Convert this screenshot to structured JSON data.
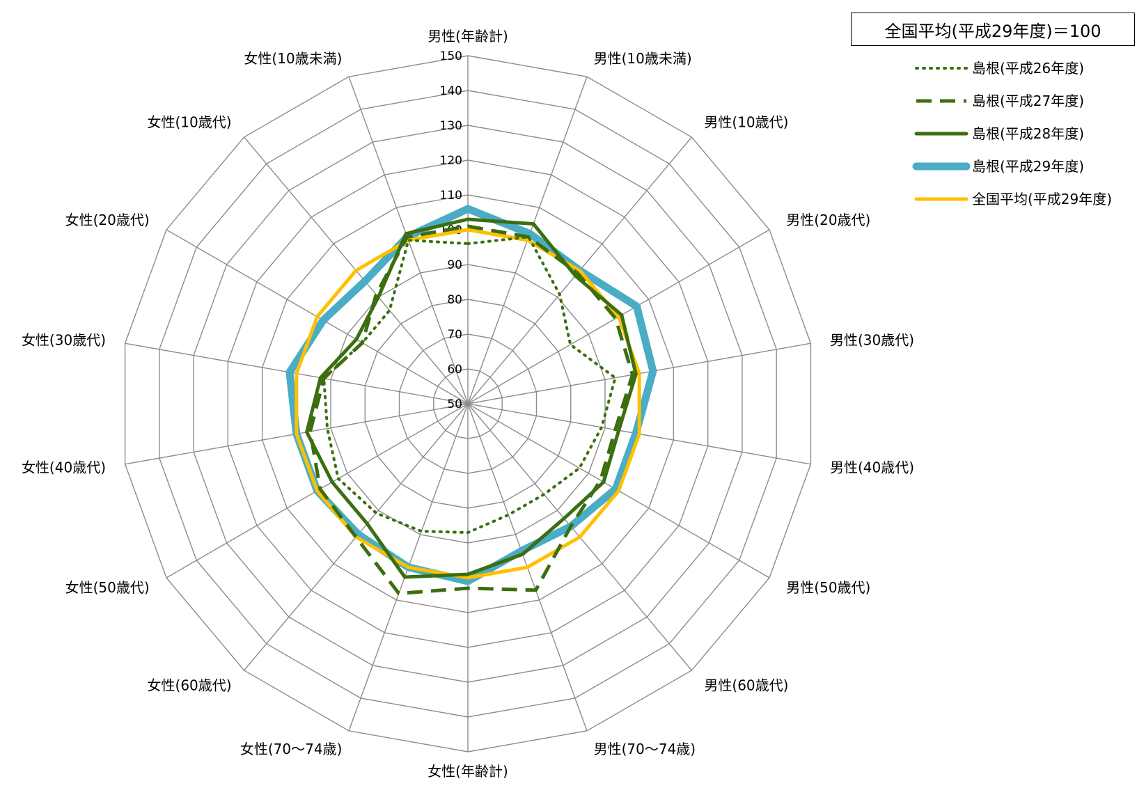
{
  "note": "全国平均(平成29年度)＝100",
  "chart_data": {
    "type": "radar",
    "categories": [
      "男性(年齢計)",
      "男性(10歳未満)",
      "男性(10歳代)",
      "男性(20歳代)",
      "男性(30歳代)",
      "男性(40歳代)",
      "男性(50歳代)",
      "男性(60歳代)",
      "男性(70～74歳)",
      "女性(年齢計)",
      "女性(70～74歳)",
      "女性(60歳代)",
      "女性(50歳代)",
      "女性(40歳代)",
      "女性(30歳代)",
      "女性(20歳代)",
      "女性(10歳代)",
      "女性(10歳未満)"
    ],
    "rlim": [
      50,
      150
    ],
    "ticks": [
      50,
      60,
      70,
      80,
      90,
      100,
      110,
      120,
      130,
      140,
      150
    ],
    "grid": true,
    "legend_position": "top-right",
    "series": [
      {
        "name": "島根(平成26年度)",
        "color": "#3b6e0f",
        "style": "dotted",
        "values": [
          96,
          101,
          91,
          84,
          93,
          89,
          87,
          84,
          84,
          87,
          89,
          91,
          93,
          91,
          92,
          85,
          85,
          100
        ]
      },
      {
        "name": "島根(平成27年度)",
        "color": "#3b6e0f",
        "style": "dashed",
        "values": [
          101,
          101,
          99,
          99,
          98,
          93,
          94,
          96,
          107,
          103,
          108,
          100,
          99,
          96,
          92,
          85,
          91,
          101
        ]
      },
      {
        "name": "島根(平成28年度)",
        "color": "#3b6e0f",
        "style": "solid",
        "values": [
          103,
          105,
          98,
          101,
          99,
          94,
          95,
          93,
          96,
          99,
          103,
          95,
          95,
          97,
          93,
          87,
          90,
          102
        ]
      },
      {
        "name": "島根(平成29年度)",
        "color": "#4bacc6",
        "style": "solid",
        "values": [
          106,
          102,
          100,
          106,
          104,
          99,
          99,
          96,
          95,
          101,
          100,
          99,
          100,
          100,
          102,
          98,
          96,
          101
        ]
      },
      {
        "name": "全国平均(平成29年度)",
        "color": "#ffc000",
        "style": "solid",
        "values": [
          100,
          100,
          100,
          100,
          100,
          100,
          100,
          100,
          100,
          100,
          100,
          100,
          100,
          100,
          100,
          100,
          100,
          100
        ]
      }
    ]
  }
}
